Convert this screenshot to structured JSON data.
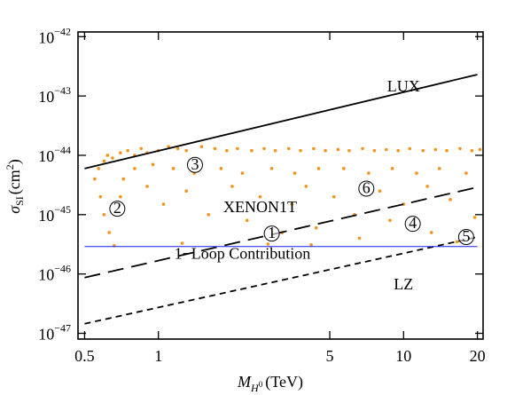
{
  "chart_data": {
    "type": "scatter",
    "log_x": true,
    "log_y": true,
    "xlim": [
      0.47,
      21.1
    ],
    "ylim": [
      8e-48,
      1.2e-42
    ],
    "xticks": [
      0.5,
      1,
      5,
      10,
      20
    ],
    "yticks": [
      {
        "value": 1e-42,
        "base": "10",
        "exponent": "−42"
      },
      {
        "value": 1e-43,
        "base": "10",
        "exponent": "−43"
      },
      {
        "value": 1e-44,
        "base": "10",
        "exponent": "−44"
      },
      {
        "value": 1e-45,
        "base": "10",
        "exponent": "−45"
      },
      {
        "value": 1e-46,
        "base": "10",
        "exponent": "−46"
      },
      {
        "value": 1e-47,
        "base": "10",
        "exponent": "−47"
      }
    ],
    "x_label": [
      "M",
      "H",
      "0",
      "(TeV)"
    ],
    "y_label": [
      "σ",
      "SI",
      "(cm",
      "2",
      ")"
    ],
    "series": [
      {
        "type": "scatter",
        "color": "#f39419",
        "x": [
          0.55,
          0.57,
          0.6,
          0.62,
          0.65,
          0.7,
          0.75,
          0.8,
          0.85,
          0.9,
          1.0,
          1.1,
          1.2,
          1.3,
          1.5,
          1.7,
          1.9,
          2.1,
          2.4,
          2.7,
          3,
          3.4,
          3.8,
          4.3,
          4.8,
          5.4,
          6,
          6.8,
          7.6,
          8.5,
          9.5,
          10.6,
          12,
          13.5,
          15,
          17,
          19,
          20.5,
          0.58,
          0.6,
          0.63,
          0.66,
          0.72,
          0.8,
          0.95,
          1.15,
          1.4,
          1.8,
          2.2,
          2.9,
          3.6,
          4.5,
          5.7,
          7.2,
          9,
          11.3,
          14,
          18,
          0.7,
          0.9,
          1.05,
          1.3,
          1.6,
          2,
          2.3,
          2.6,
          3.2,
          3.5,
          4,
          4.4,
          5.2,
          6.3,
          6.6,
          8,
          8.8,
          10,
          12.5,
          13,
          15.5,
          16.5,
          19.5,
          1.25,
          2.8,
          4.2
        ],
        "values": [
          4e-45,
          6e-45,
          8e-45,
          1e-44,
          9e-45,
          1.1e-44,
          1.2e-44,
          1e-44,
          1.3e-44,
          1.1e-44,
          1.2e-44,
          1.4e-44,
          1.3e-44,
          1.2e-44,
          1.4e-44,
          1.3e-44,
          1.2e-44,
          1.3e-44,
          1.2e-44,
          1.3e-44,
          1.2e-44,
          1.3e-44,
          1.2e-44,
          1.3e-44,
          1.2e-44,
          1.25e-44,
          1.2e-44,
          1.3e-44,
          1.2e-44,
          1.25e-44,
          1.2e-44,
          1.3e-44,
          1.2e-44,
          1.25e-44,
          1.2e-44,
          1.3e-44,
          1.2e-44,
          1.25e-44,
          2e-45,
          1e-45,
          5e-46,
          3e-46,
          4e-45,
          6e-45,
          7e-45,
          6e-45,
          5e-45,
          6e-45,
          5e-45,
          6e-45,
          5e-45,
          6e-45,
          6e-45,
          5e-45,
          6e-45,
          5e-45,
          6e-45,
          5e-45,
          2e-45,
          3e-45,
          1.5e-45,
          2.5e-45,
          1e-45,
          3e-45,
          8e-46,
          2e-45,
          5e-46,
          1.5e-45,
          3e-45,
          6e-46,
          2e-45,
          1e-45,
          4e-46,
          2.5e-45,
          8e-46,
          1.5e-45,
          3e-45,
          5e-46,
          1.8e-45,
          3.5e-46,
          9e-46,
          3.3e-46,
          3.2e-46,
          3.1e-46
        ]
      },
      {
        "type": "line",
        "name": "LUX",
        "color": "#000000",
        "dash": "solid",
        "label_at": [
          10,
          1.2e-43
        ],
        "x": [
          0.5,
          20
        ],
        "values": [
          6e-45,
          2.3e-43
        ]
      },
      {
        "type": "line",
        "name": "XENON1T",
        "color": "#000000",
        "dash": "long",
        "label_at": [
          2.6,
          1.1e-45
        ],
        "x": [
          0.5,
          20
        ],
        "values": [
          8.7e-47,
          2.9e-45
        ]
      },
      {
        "type": "line",
        "name": "LZ",
        "color": "#000000",
        "dash": "short",
        "label_at": [
          10,
          5.5e-47
        ],
        "x": [
          0.5,
          20
        ],
        "values": [
          1.45e-47,
          4.2e-46
        ]
      },
      {
        "type": "line",
        "name": "1−Loop Contribution",
        "color": "#1a1aff",
        "dash": "solid",
        "label_color": "#1a1aff",
        "label_at": [
          2.2,
          1.8e-46
        ],
        "x": [
          0.5,
          20
        ],
        "values": [
          2.9e-46,
          2.9e-46
        ]
      }
    ],
    "annotations": [
      {
        "text": "1",
        "x": 2.9,
        "y": 4.8e-46
      },
      {
        "text": "2",
        "x": 0.68,
        "y": 1.26e-45
      },
      {
        "text": "3",
        "x": 1.41,
        "y": 6.9e-45
      },
      {
        "text": "4",
        "x": 10.9,
        "y": 7e-46
      },
      {
        "text": "5",
        "x": 18,
        "y": 4.2e-46
      },
      {
        "text": "6",
        "x": 7.05,
        "y": 2.75e-45
      }
    ]
  }
}
